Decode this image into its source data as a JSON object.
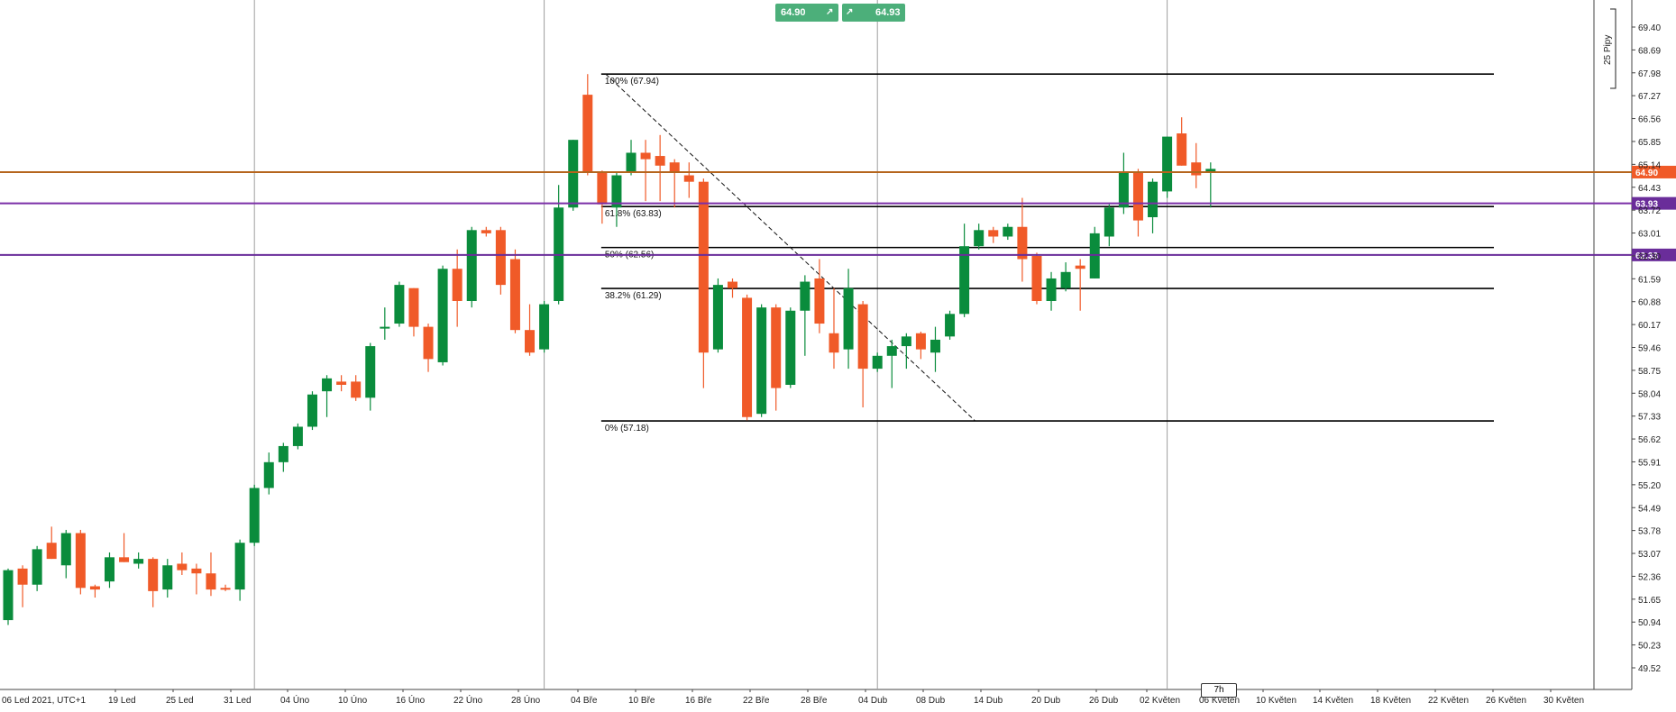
{
  "chart_data": {
    "type": "candlestick",
    "title": "",
    "xlabel": "",
    "ylabel": "",
    "ylim": [
      48.9,
      70.1
    ],
    "x_tick_labels": [
      "06 Led 2021, UTC+1",
      "19 Led",
      "25 Led",
      "31 Led",
      "04 Úno",
      "10 Úno",
      "16 Úno",
      "22 Úno",
      "28 Úno",
      "04 Bře",
      "10 Bře",
      "16 Bře",
      "22 Bře",
      "28 Bře",
      "04 Dub",
      "08 Dub",
      "14 Dub",
      "20 Dub",
      "26 Dub",
      "02 Květen",
      "06 Květen",
      "10 Květen",
      "14 Květen",
      "18 Květen",
      "22 Květen",
      "26 Květen",
      "30 Květen"
    ],
    "y_tick_labels": [
      "69.40",
      "68.69",
      "67.98",
      "67.27",
      "66.56",
      "65.85",
      "65.14",
      "64.43",
      "63.72",
      "63.01",
      "62.30",
      "61.59",
      "60.88",
      "60.17",
      "59.46",
      "58.75",
      "58.04",
      "57.33",
      "56.62",
      "55.91",
      "55.20",
      "54.49",
      "53.78",
      "53.07",
      "52.36",
      "51.65",
      "50.94",
      "50.23",
      "49.52"
    ],
    "y_ticks": [
      69.4,
      68.69,
      67.98,
      67.27,
      66.56,
      65.85,
      65.14,
      64.43,
      63.72,
      63.01,
      62.3,
      61.59,
      60.88,
      60.17,
      59.46,
      58.75,
      58.04,
      57.33,
      56.62,
      55.91,
      55.2,
      54.49,
      53.78,
      53.07,
      52.36,
      51.65,
      50.94,
      50.23,
      49.52
    ],
    "candles": [
      {
        "o": 51.0,
        "h": 52.6,
        "l": 50.85,
        "c": 52.55
      },
      {
        "o": 52.6,
        "h": 52.7,
        "l": 51.4,
        "c": 52.1
      },
      {
        "o": 52.1,
        "h": 53.3,
        "l": 51.9,
        "c": 53.2
      },
      {
        "o": 53.4,
        "h": 53.9,
        "l": 52.9,
        "c": 52.9
      },
      {
        "o": 52.7,
        "h": 53.8,
        "l": 52.3,
        "c": 53.7
      },
      {
        "o": 53.7,
        "h": 53.8,
        "l": 51.8,
        "c": 52.0
      },
      {
        "o": 52.05,
        "h": 52.1,
        "l": 51.7,
        "c": 51.95
      },
      {
        "o": 52.2,
        "h": 53.1,
        "l": 52.0,
        "c": 52.95
      },
      {
        "o": 52.95,
        "h": 53.7,
        "l": 52.8,
        "c": 52.8
      },
      {
        "o": 52.75,
        "h": 53.1,
        "l": 52.6,
        "c": 52.9
      },
      {
        "o": 52.9,
        "h": 52.95,
        "l": 51.4,
        "c": 51.9
      },
      {
        "o": 51.95,
        "h": 52.9,
        "l": 51.7,
        "c": 52.7
      },
      {
        "o": 52.75,
        "h": 53.1,
        "l": 52.4,
        "c": 52.55
      },
      {
        "o": 52.6,
        "h": 52.75,
        "l": 51.8,
        "c": 52.45
      },
      {
        "o": 52.45,
        "h": 53.1,
        "l": 51.75,
        "c": 51.95
      },
      {
        "o": 52.0,
        "h": 52.1,
        "l": 51.9,
        "c": 51.95
      },
      {
        "o": 51.95,
        "h": 53.5,
        "l": 51.6,
        "c": 53.4
      },
      {
        "o": 53.4,
        "h": 55.2,
        "l": 53.3,
        "c": 55.1
      },
      {
        "o": 55.1,
        "h": 56.2,
        "l": 54.9,
        "c": 55.9
      },
      {
        "o": 55.9,
        "h": 56.5,
        "l": 55.6,
        "c": 56.4
      },
      {
        "o": 56.4,
        "h": 57.1,
        "l": 56.3,
        "c": 57.0
      },
      {
        "o": 57.0,
        "h": 58.1,
        "l": 56.9,
        "c": 58.0
      },
      {
        "o": 58.1,
        "h": 58.6,
        "l": 57.3,
        "c": 58.5
      },
      {
        "o": 58.4,
        "h": 58.6,
        "l": 58.1,
        "c": 58.3
      },
      {
        "o": 58.4,
        "h": 58.6,
        "l": 57.8,
        "c": 57.9
      },
      {
        "o": 57.9,
        "h": 59.6,
        "l": 57.5,
        "c": 59.5
      },
      {
        "o": 60.1,
        "h": 60.7,
        "l": 59.7,
        "c": 60.1
      },
      {
        "o": 60.2,
        "h": 61.5,
        "l": 60.1,
        "c": 61.4
      },
      {
        "o": 61.3,
        "h": 61.3,
        "l": 59.8,
        "c": 60.1
      },
      {
        "o": 60.1,
        "h": 60.2,
        "l": 58.7,
        "c": 59.1
      },
      {
        "o": 59.0,
        "h": 62.0,
        "l": 58.9,
        "c": 61.9
      },
      {
        "o": 61.9,
        "h": 62.5,
        "l": 60.1,
        "c": 60.9
      },
      {
        "o": 60.9,
        "h": 63.2,
        "l": 60.7,
        "c": 63.1
      },
      {
        "o": 63.1,
        "h": 63.2,
        "l": 62.9,
        "c": 63.0
      },
      {
        "o": 63.1,
        "h": 63.2,
        "l": 61.1,
        "c": 61.4
      },
      {
        "o": 62.2,
        "h": 62.5,
        "l": 59.9,
        "c": 60.0
      },
      {
        "o": 60.0,
        "h": 60.8,
        "l": 59.2,
        "c": 59.3
      },
      {
        "o": 59.4,
        "h": 60.9,
        "l": 59.3,
        "c": 60.8
      },
      {
        "o": 60.9,
        "h": 64.5,
        "l": 60.8,
        "c": 63.8
      },
      {
        "o": 63.8,
        "h": 65.9,
        "l": 63.7,
        "c": 65.9
      },
      {
        "o": 67.3,
        "h": 67.94,
        "l": 64.8,
        "c": 64.9
      },
      {
        "o": 64.9,
        "h": 64.95,
        "l": 63.3,
        "c": 63.9
      },
      {
        "o": 63.8,
        "h": 64.9,
        "l": 63.2,
        "c": 64.8
      },
      {
        "o": 64.9,
        "h": 65.9,
        "l": 64.8,
        "c": 65.5
      },
      {
        "o": 65.5,
        "h": 65.9,
        "l": 64.0,
        "c": 65.3
      },
      {
        "o": 65.4,
        "h": 66.05,
        "l": 64.0,
        "c": 65.1
      },
      {
        "o": 65.2,
        "h": 65.3,
        "l": 63.8,
        "c": 64.9
      },
      {
        "o": 64.8,
        "h": 65.2,
        "l": 64.1,
        "c": 64.6
      },
      {
        "o": 64.6,
        "h": 64.7,
        "l": 58.2,
        "c": 59.3
      },
      {
        "o": 59.4,
        "h": 61.6,
        "l": 59.3,
        "c": 61.4
      },
      {
        "o": 61.5,
        "h": 61.6,
        "l": 61.0,
        "c": 61.3
      },
      {
        "o": 61.0,
        "h": 61.1,
        "l": 57.2,
        "c": 57.3
      },
      {
        "o": 57.4,
        "h": 60.8,
        "l": 57.3,
        "c": 60.7
      },
      {
        "o": 60.7,
        "h": 60.8,
        "l": 57.5,
        "c": 58.2
      },
      {
        "o": 58.3,
        "h": 60.7,
        "l": 58.2,
        "c": 60.6
      },
      {
        "o": 60.6,
        "h": 61.7,
        "l": 59.2,
        "c": 61.5
      },
      {
        "o": 61.6,
        "h": 62.2,
        "l": 59.9,
        "c": 60.2
      },
      {
        "o": 59.9,
        "h": 61.3,
        "l": 58.8,
        "c": 59.3
      },
      {
        "o": 59.4,
        "h": 61.9,
        "l": 58.8,
        "c": 61.3
      },
      {
        "o": 60.8,
        "h": 60.9,
        "l": 57.6,
        "c": 58.8
      },
      {
        "o": 58.8,
        "h": 59.3,
        "l": 58.7,
        "c": 59.2
      },
      {
        "o": 59.2,
        "h": 59.7,
        "l": 58.2,
        "c": 59.5
      },
      {
        "o": 59.5,
        "h": 59.9,
        "l": 58.8,
        "c": 59.8
      },
      {
        "o": 59.9,
        "h": 59.95,
        "l": 59.1,
        "c": 59.4
      },
      {
        "o": 59.3,
        "h": 60.1,
        "l": 58.7,
        "c": 59.7
      },
      {
        "o": 59.8,
        "h": 60.6,
        "l": 59.7,
        "c": 60.5
      },
      {
        "o": 60.5,
        "h": 63.3,
        "l": 60.4,
        "c": 62.6
      },
      {
        "o": 62.6,
        "h": 63.3,
        "l": 62.5,
        "c": 63.1
      },
      {
        "o": 63.1,
        "h": 63.2,
        "l": 62.7,
        "c": 62.9
      },
      {
        "o": 62.9,
        "h": 63.3,
        "l": 62.8,
        "c": 63.2
      },
      {
        "o": 63.2,
        "h": 64.1,
        "l": 61.5,
        "c": 62.2
      },
      {
        "o": 62.3,
        "h": 62.4,
        "l": 60.8,
        "c": 60.9
      },
      {
        "o": 60.9,
        "h": 61.8,
        "l": 60.6,
        "c": 61.6
      },
      {
        "o": 61.3,
        "h": 62.1,
        "l": 61.2,
        "c": 61.8
      },
      {
        "o": 62.0,
        "h": 62.2,
        "l": 60.6,
        "c": 61.9
      },
      {
        "o": 61.6,
        "h": 63.2,
        "l": 61.6,
        "c": 63.0
      },
      {
        "o": 62.9,
        "h": 63.9,
        "l": 62.6,
        "c": 63.8
      },
      {
        "o": 63.8,
        "h": 65.5,
        "l": 63.6,
        "c": 64.9
      },
      {
        "o": 64.9,
        "h": 65.0,
        "l": 62.9,
        "c": 63.4
      },
      {
        "o": 63.5,
        "h": 64.7,
        "l": 63.0,
        "c": 64.6
      },
      {
        "o": 64.3,
        "h": 66.0,
        "l": 64.1,
        "c": 66.0
      },
      {
        "o": 66.1,
        "h": 66.6,
        "l": 65.1,
        "c": 65.1
      },
      {
        "o": 65.2,
        "h": 65.8,
        "l": 64.4,
        "c": 64.8
      },
      {
        "o": 64.9,
        "h": 65.2,
        "l": 63.8,
        "c": 65.0
      }
    ],
    "vertical_grid_dates": [
      "31 Led",
      "28 Úno",
      "04 Dub",
      "02 Květen"
    ],
    "horizontal_lines": [
      {
        "price": 64.9,
        "label": "64.90",
        "line_color": "#b5651d",
        "tag_color": "#f05a28"
      },
      {
        "price": 63.93,
        "label": "63.93",
        "line_color": "#7b2fa8",
        "tag_color": "#6a2d9a"
      },
      {
        "price": 62.33,
        "label": "62.33",
        "line_color": "#6a2d9a",
        "tag_color": "#6a2d9a"
      }
    ],
    "fibonacci": {
      "start_date": "04 Bře",
      "levels": [
        {
          "price": 67.94,
          "label": "100% (67.94)"
        },
        {
          "price": 63.83,
          "label": "61.8% (63.83)"
        },
        {
          "price": 62.56,
          "label": "50% (62.56)"
        },
        {
          "price": 61.29,
          "label": "38.2% (61.29)"
        },
        {
          "price": 57.18,
          "label": "0% (57.18)"
        }
      ],
      "trendline": {
        "from": {
          "date": "04 Bře",
          "price": 67.94
        },
        "to": {
          "date": "14 Dub",
          "price": 57.18
        }
      }
    },
    "colors": {
      "bull": "#0a8c3c",
      "bear": "#f05a28",
      "grid": "#9e9e9e",
      "fib": "#000000"
    },
    "legend": "none",
    "grid": "vertical only"
  },
  "trade_panel": {
    "sell_price": "64.90",
    "buy_price": "64.93",
    "sell_icon": "arrow-up-right-icon",
    "buy_icon": "arrow-up-right-icon"
  },
  "timeframe_badge": "7h",
  "pips_ruler_label": "25 Pipy"
}
